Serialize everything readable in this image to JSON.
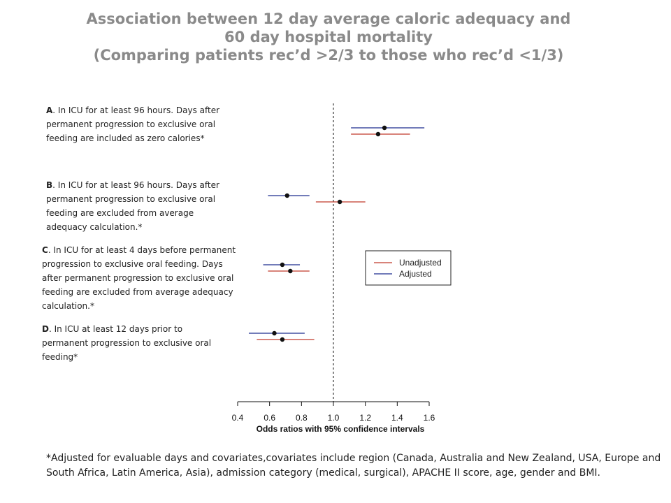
{
  "title": {
    "line1": "Association between 12 day average caloric adequacy and",
    "line2": "60 day hospital mortality",
    "line3": "(Comparing patients rec’d >2/3 to those who rec’d <1/3)"
  },
  "panels": [
    {
      "letter": "A",
      "text": ". In ICU for at least 96 hours. Days after permanent progression to exclusive oral feeding are included as zero calories*"
    },
    {
      "letter": "B",
      "text": ". In ICU for at least 96 hours. Days after permanent progression to exclusive oral feeding are excluded from average adequacy calculation.*"
    },
    {
      "letter": "C",
      "text": ". In ICU for at least 4 days before permanent progression to exclusive oral feeding. Days after permanent progression to exclusive oral feeding are excluded from average adequacy calculation.*"
    },
    {
      "letter": "D",
      "text": ". In ICU at least 12 days prior to permanent progression to exclusive oral feeding*"
    }
  ],
  "footnote": "*Adjusted for evaluable days and covariates,covariates include region (Canada, Australia and New Zealand, USA, Europe and South Africa, Latin America, Asia), admission category (medical, surgical), APACHE II score, age, gender and BMI.",
  "colors": {
    "unadjusted": "#c0392b",
    "adjusted": "#1f2f8f",
    "marker": "#111111"
  },
  "chart_data": {
    "type": "scatter",
    "subtype": "forest-plot",
    "xlabel": "Odds ratios with 95% confidence intervals",
    "xlim": [
      0.4,
      1.6
    ],
    "xticks": [
      "0.4",
      "0.6",
      "0.8",
      "1.0",
      "1.2",
      "1.4",
      "1.6"
    ],
    "reference_line": 1.0,
    "legend": {
      "position": "right",
      "entries": [
        "Unadjusted",
        "Adjusted"
      ]
    },
    "series": [
      {
        "name": "Adjusted",
        "panels": [
          "A",
          "B",
          "C",
          "D"
        ],
        "estimate": [
          1.32,
          0.71,
          0.68,
          0.63
        ],
        "lower": [
          1.11,
          0.59,
          0.56,
          0.47
        ],
        "upper": [
          1.57,
          0.85,
          0.79,
          0.82
        ]
      },
      {
        "name": "Unadjusted",
        "panels": [
          "A",
          "B",
          "C",
          "D"
        ],
        "estimate": [
          1.28,
          1.04,
          0.73,
          0.68
        ],
        "lower": [
          1.11,
          0.89,
          0.59,
          0.52
        ],
        "upper": [
          1.48,
          1.2,
          0.85,
          0.88
        ]
      }
    ]
  }
}
